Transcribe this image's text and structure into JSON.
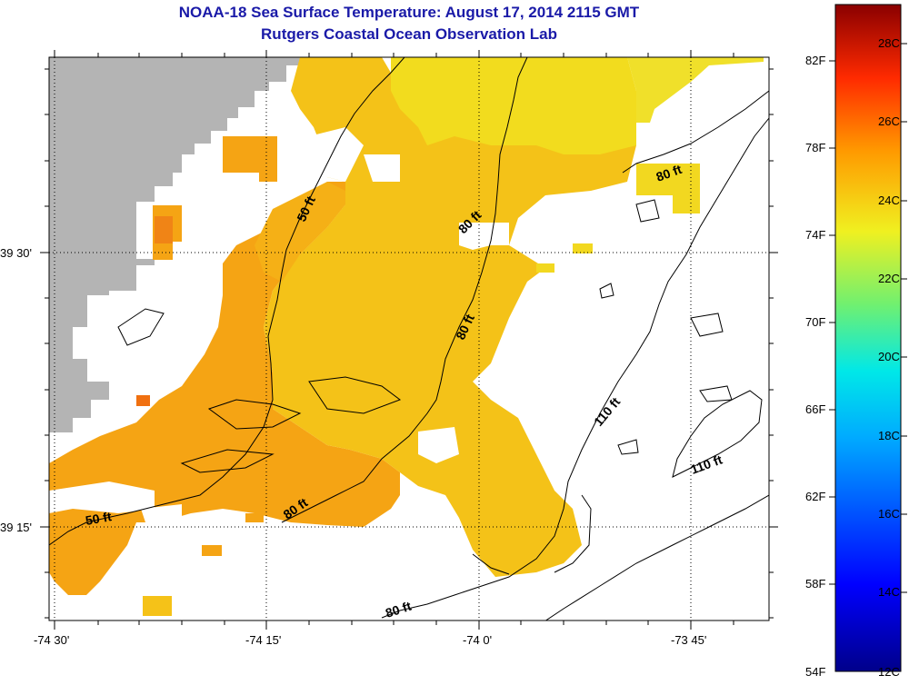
{
  "header": {
    "title": "NOAA-18 Sea Surface Temperature:  August 17, 2014 2115 GMT",
    "subtitle": "Rutgers Coastal Ocean Observation Lab"
  },
  "map": {
    "lon_labels": [
      "-74 30'",
      "-74 15'",
      "-74 0'",
      "-73 45'"
    ],
    "lat_labels": [
      "39 30'",
      "39 15'"
    ],
    "contour_labels": [
      "50 ft",
      "50 ft",
      "80 ft",
      "80 ft",
      "80 ft",
      "80 ft",
      "80 ft",
      "110 ft",
      "110 ft"
    ],
    "colors": {
      "land": "#b4b4b4",
      "no_data": "#ffffff",
      "warm": "#f5a414",
      "cool": "#f2dc1e",
      "contour": "#000000"
    }
  },
  "colorbar": {
    "fahrenheit": [
      "82F",
      "78F",
      "74F",
      "70F",
      "66F",
      "62F",
      "58F",
      "54F"
    ],
    "celsius": [
      "28C",
      "26C",
      "24C",
      "22C",
      "20C",
      "18C",
      "16C",
      "14C",
      "12C"
    ]
  }
}
